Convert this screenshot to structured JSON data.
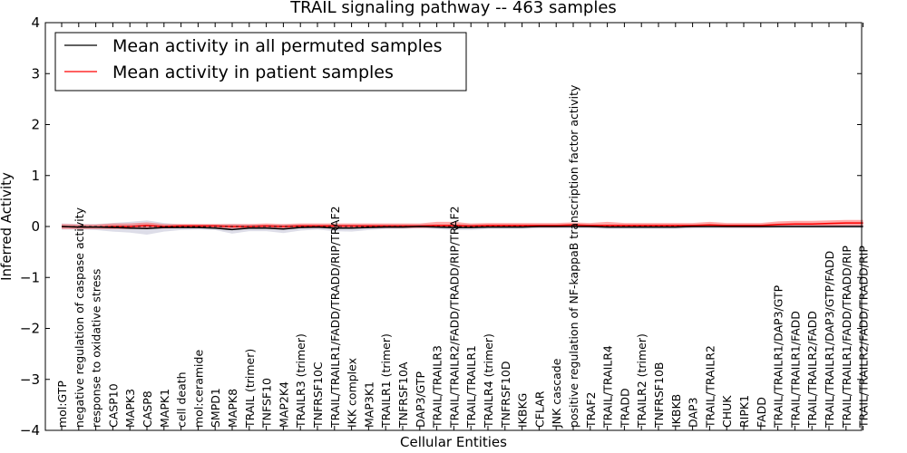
{
  "chart_data": {
    "type": "line",
    "title": "TRAIL signaling pathway -- 463 samples",
    "xlabel": "Cellular Entities",
    "ylabel": "Inferred Activity",
    "ylim": [
      -4,
      4
    ],
    "yticks": [
      "−4",
      "−3",
      "−2",
      "−1",
      "0",
      "1",
      "2",
      "3",
      "4"
    ],
    "grid": false,
    "legend_position": "top-left",
    "categories": [
      "mol:GTP",
      "negative regulation of caspase activity",
      "response to oxidative stress",
      "CASP10",
      "MAPK3",
      "CASP8",
      "MAPK1",
      "cell death",
      "mol:ceramide",
      "SMPD1",
      "MAPK8",
      "TRAIL (trimer)",
      "TNFSF10",
      "MAP2K4",
      "TRAILR3 (trimer)",
      "TNFRSF10C",
      "TRAIL/TRAILR1/FADD/TRADD/RIP/TRAF2",
      "IKK complex",
      "MAP3K1",
      "TRAILR1 (trimer)",
      "TNFRSF10A",
      "DAP3/GTP",
      "TRAIL/TRAILR3",
      "TRAIL/TRAILR2/FADD/TRADD/RIP/TRAF2",
      "TRAIL/TRAILR1",
      "TRAILR4 (trimer)",
      "TNFRSF10D",
      "IKBKG",
      "CFLAR",
      "JNK cascade",
      "positive regulation of NF-kappaB transcription factor activity",
      "TRAF2",
      "TRAIL/TRAILR4",
      "TRADD",
      "TRAILR2 (trimer)",
      "TNFRSF10B",
      "IKBKB",
      "DAP3",
      "TRAIL/TRAILR2",
      "CHUK",
      "RIPK1",
      "FADD",
      "TRAIL/TRAILR1/DAP3/GTP",
      "TRAIL/TRAILR1/FADD",
      "TRAIL/TRAILR2/FADD",
      "TRAIL/TRAILR1/DAP3/GTP/FADD",
      "TRAIL/TRAILR1/FADD/TRADD/RIP",
      "TRAIL/TRAILR2/FADD/TRADD/RIP"
    ],
    "series": [
      {
        "name": "Mean activity in all permuted samples",
        "color": "#000000",
        "values": [
          0,
          -0.01,
          -0.01,
          -0.02,
          -0.03,
          -0.04,
          -0.02,
          -0.02,
          -0.02,
          -0.03,
          -0.06,
          -0.03,
          -0.03,
          -0.05,
          -0.02,
          -0.01,
          -0.03,
          -0.03,
          -0.02,
          -0.01,
          -0.01,
          0,
          -0.01,
          -0.02,
          -0.02,
          -0.01,
          -0.01,
          -0.01,
          0,
          0,
          0,
          0,
          -0.01,
          -0.01,
          -0.01,
          -0.01,
          -0.01,
          0,
          0,
          0,
          0,
          0,
          0,
          0,
          0,
          0,
          0,
          0
        ],
        "band_low": [
          -0.06,
          -0.06,
          -0.07,
          -0.1,
          -0.12,
          -0.16,
          -0.1,
          -0.07,
          -0.06,
          -0.07,
          -0.14,
          -0.09,
          -0.09,
          -0.13,
          -0.08,
          -0.06,
          -0.09,
          -0.1,
          -0.07,
          -0.05,
          -0.05,
          -0.04,
          -0.05,
          -0.07,
          -0.07,
          -0.05,
          -0.05,
          -0.05,
          -0.04,
          -0.04,
          -0.04,
          -0.04,
          -0.05,
          -0.05,
          -0.05,
          -0.05,
          -0.05,
          -0.04,
          -0.04,
          -0.04,
          -0.04,
          -0.04,
          -0.03,
          -0.03,
          -0.03,
          -0.03,
          -0.03,
          -0.03
        ],
        "band_high": [
          0.06,
          0.05,
          0.05,
          0.07,
          0.09,
          0.12,
          0.07,
          0.04,
          0.04,
          0.04,
          0.05,
          0.04,
          0.03,
          0.04,
          0.04,
          0.04,
          0.04,
          0.04,
          0.04,
          0.04,
          0.04,
          0.04,
          0.04,
          0.04,
          0.04,
          0.04,
          0.04,
          0.04,
          0.04,
          0.04,
          0.04,
          0.04,
          0.04,
          0.04,
          0.04,
          0.04,
          0.04,
          0.04,
          0.04,
          0.04,
          0.04,
          0.04,
          0.04,
          0.04,
          0.04,
          0.04,
          0.04,
          0.04
        ]
      },
      {
        "name": "Mean activity in patient samples",
        "color": "#ff0000",
        "values": [
          0,
          -0.01,
          -0.01,
          0,
          0,
          0.02,
          0,
          0.01,
          0.01,
          0.01,
          0,
          0,
          0.01,
          0,
          0.01,
          0.01,
          0.01,
          0.01,
          0.01,
          0.01,
          0.01,
          0.01,
          0.02,
          0.02,
          0.01,
          0.02,
          0.02,
          0.02,
          0.02,
          0.02,
          0.03,
          0.02,
          0.02,
          0.02,
          0.02,
          0.02,
          0.02,
          0.02,
          0.03,
          0.02,
          0.02,
          0.02,
          0.04,
          0.05,
          0.05,
          0.06,
          0.07,
          0.07
        ],
        "band_low": [
          -0.05,
          -0.05,
          -0.05,
          -0.05,
          -0.05,
          -0.04,
          -0.04,
          -0.03,
          -0.03,
          -0.03,
          -0.04,
          -0.04,
          -0.03,
          -0.04,
          -0.03,
          -0.03,
          -0.03,
          -0.03,
          -0.03,
          -0.03,
          -0.03,
          -0.03,
          -0.02,
          -0.02,
          -0.03,
          -0.02,
          -0.02,
          -0.02,
          -0.02,
          -0.02,
          -0.01,
          -0.02,
          -0.02,
          -0.02,
          -0.02,
          -0.02,
          -0.02,
          -0.02,
          -0.01,
          -0.02,
          -0.02,
          -0.02,
          -0.01,
          0,
          0,
          0,
          0.01,
          0.01
        ],
        "band_high": [
          0.05,
          0.04,
          0.04,
          0.06,
          0.06,
          0.08,
          0.05,
          0.05,
          0.05,
          0.05,
          0.05,
          0.05,
          0.06,
          0.05,
          0.06,
          0.06,
          0.06,
          0.06,
          0.06,
          0.06,
          0.06,
          0.06,
          0.09,
          0.09,
          0.06,
          0.07,
          0.07,
          0.07,
          0.07,
          0.07,
          0.08,
          0.07,
          0.09,
          0.07,
          0.07,
          0.07,
          0.07,
          0.07,
          0.09,
          0.07,
          0.07,
          0.07,
          0.1,
          0.11,
          0.11,
          0.12,
          0.13,
          0.13
        ]
      }
    ]
  }
}
